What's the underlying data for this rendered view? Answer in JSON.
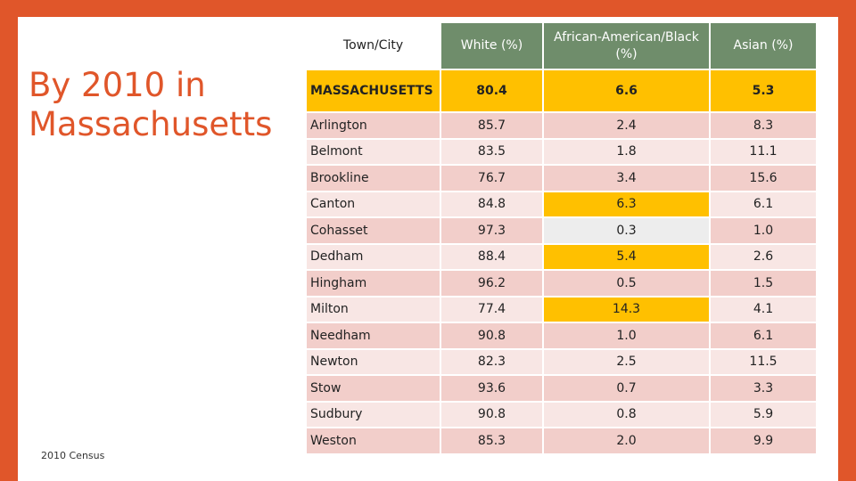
{
  "title_lines": [
    "By 2010 in",
    "Massachusetts"
  ],
  "source": "2010 Census",
  "colors": {
    "border": "#E0562A",
    "header": "#6F8D6B",
    "highlight": "#FFC000",
    "row_dark": "#F2CECA",
    "row_light": "#F8E6E4"
  },
  "table": {
    "headers": [
      "Town/City",
      "White (%)",
      "African-American/Black (%)",
      "Asian (%)"
    ],
    "state": [
      "MASSACHUSETTS",
      "80.4",
      "6.6",
      "5.3"
    ],
    "rows": [
      [
        "Arlington",
        "85.7",
        "2.4",
        "8.3"
      ],
      [
        "Belmont",
        "83.5",
        "1.8",
        "11.1"
      ],
      [
        "Brookline",
        "76.7",
        "3.4",
        "15.6"
      ],
      [
        "Canton",
        "84.8",
        "6.3",
        "6.1"
      ],
      [
        "Cohasset",
        "97.3",
        "0.3",
        "1.0"
      ],
      [
        "Dedham",
        "88.4",
        "5.4",
        "2.6"
      ],
      [
        "Hingham",
        "96.2",
        "0.5",
        "1.5"
      ],
      [
        "Milton",
        "77.4",
        "14.3",
        "4.1"
      ],
      [
        "Needham",
        "90.8",
        "1.0",
        "6.1"
      ],
      [
        "Newton",
        "82.3",
        "2.5",
        "11.5"
      ],
      [
        "Stow",
        "93.6",
        "0.7",
        "3.3"
      ],
      [
        "Sudbury",
        "90.8",
        "0.8",
        "5.9"
      ],
      [
        "Weston",
        "85.3",
        "2.0",
        "9.9"
      ]
    ]
  }
}
